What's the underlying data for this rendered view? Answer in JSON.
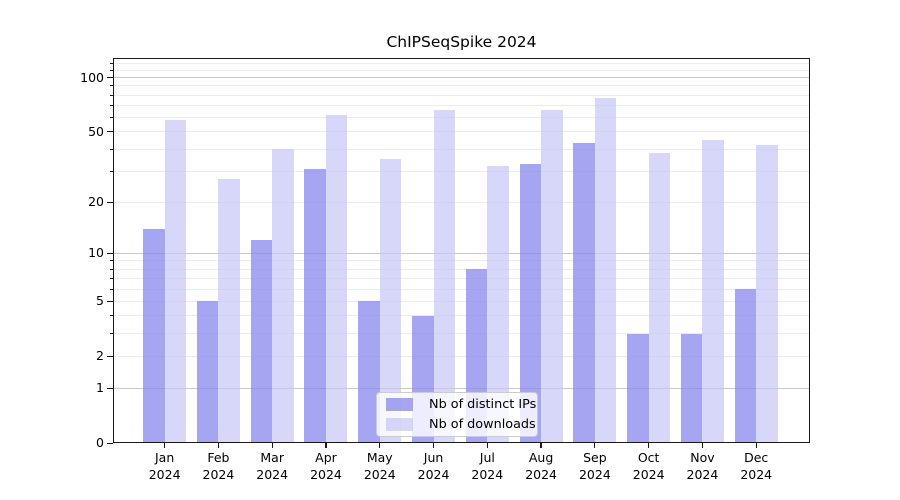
{
  "title": "ChIPSeqSpike 2024",
  "chart_data": {
    "type": "bar",
    "title": "ChIPSeqSpike 2024",
    "categories": [
      "Jan 2024",
      "Feb 2024",
      "Mar 2024",
      "Apr 2024",
      "May 2024",
      "Jun 2024",
      "Jul 2024",
      "Aug 2024",
      "Sep 2024",
      "Oct 2024",
      "Nov 2024",
      "Dec 2024"
    ],
    "series": [
      {
        "name": "Nb of distinct IPs",
        "color": "rgba(140,140,238,0.78)",
        "values": [
          14,
          5,
          12,
          31,
          5,
          4,
          8,
          33,
          43,
          3,
          3,
          6
        ]
      },
      {
        "name": "Nb of downloads",
        "color": "rgba(196,196,246,0.68)",
        "values": [
          58,
          27,
          40,
          62,
          35,
          66,
          32,
          66,
          77,
          38,
          45,
          42
        ]
      }
    ],
    "xlabel": "",
    "ylabel": "",
    "y_scale": "log10(1+y)",
    "y_ticks": [
      0,
      1,
      2,
      5,
      10,
      20,
      50,
      100
    ],
    "y_major_gridlines": [
      1,
      10,
      100
    ],
    "y_minor_gridlines": [
      2,
      3,
      4,
      5,
      6,
      7,
      8,
      9,
      20,
      30,
      40,
      50,
      60,
      70,
      80,
      90,
      110,
      120
    ],
    "ylim": [
      0,
      128.4
    ],
    "bar_width_fraction": 0.4,
    "legend_position": "lower center",
    "grid": true
  },
  "colors": {
    "bar_distinct_ips": "#a5a5f2",
    "bar_downloads": "#d7d7f9",
    "grid_major": "#c9c9c9",
    "grid_minor": "#ececec",
    "axis": "#1a1a1a",
    "background": "#ffffff"
  }
}
